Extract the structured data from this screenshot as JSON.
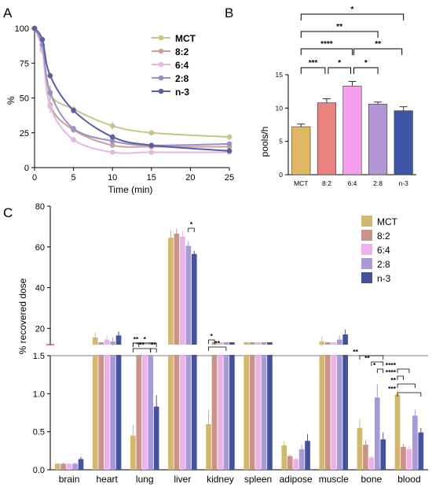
{
  "chart_data": [
    {
      "panel": "A",
      "type": "line",
      "xlabel": "Time (min)",
      "ylabel": "%",
      "xlim": [
        0,
        25
      ],
      "ylim": [
        0,
        100
      ],
      "xticks": [
        0,
        5,
        10,
        15,
        20,
        25
      ],
      "yticks": [
        0,
        25,
        50,
        75,
        100
      ],
      "x": [
        0,
        1,
        2,
        5,
        10,
        15,
        25
      ],
      "legend_position": "top-right",
      "series": [
        {
          "name": "MCT",
          "color": "#c9c48a",
          "values": [
            100,
            88,
            53,
            42,
            30,
            25,
            22
          ],
          "errors": [
            0,
            2,
            4,
            2,
            3,
            2,
            2
          ]
        },
        {
          "name": "8:2",
          "color": "#c8a0a0",
          "values": [
            100,
            85,
            45,
            27,
            16,
            15,
            15
          ],
          "errors": [
            0,
            2,
            6,
            2,
            2,
            1,
            1
          ]
        },
        {
          "name": "6:4",
          "color": "#e6b8e0",
          "values": [
            100,
            84,
            44,
            20,
            11,
            11,
            11
          ],
          "errors": [
            0,
            2,
            5,
            2,
            1,
            1,
            1
          ]
        },
        {
          "name": "2:8",
          "color": "#9a8fc4",
          "values": [
            100,
            88,
            54,
            28,
            19,
            16,
            17
          ],
          "errors": [
            0,
            2,
            5,
            2,
            2,
            1,
            1
          ]
        },
        {
          "name": "n-3",
          "color": "#5b5f9e",
          "values": [
            100,
            92,
            66,
            41,
            22,
            16,
            12
          ],
          "errors": [
            0,
            1,
            2,
            2,
            2,
            1,
            1
          ]
        }
      ]
    },
    {
      "panel": "B",
      "type": "bar",
      "ylabel": "pools/h",
      "ylim": [
        0,
        15
      ],
      "yticks": [
        0,
        5,
        10,
        15
      ],
      "categories": [
        "MCT",
        "8:2",
        "6:4",
        "2:8",
        "n-3"
      ],
      "values": [
        7.2,
        10.8,
        13.3,
        10.6,
        9.6
      ],
      "errors": [
        0.4,
        0.6,
        0.7,
        0.3,
        0.6
      ],
      "colors": [
        "#e2b866",
        "#e8837f",
        "#f69ff0",
        "#b495d6",
        "#3f56a6"
      ],
      "significance": [
        {
          "from": "MCT",
          "to": "n-3",
          "label": "*"
        },
        {
          "from": "MCT",
          "to": "2:8",
          "label": "**"
        },
        {
          "from": "MCT",
          "to": "6:4",
          "label": "****"
        },
        {
          "from": "6:4",
          "to": "n-3",
          "label": "**"
        },
        {
          "from": "MCT",
          "to": "8:2",
          "label": "***"
        },
        {
          "from": "8:2",
          "to": "6:4",
          "label": "*"
        },
        {
          "from": "6:4",
          "to": "2:8",
          "label": "*"
        }
      ]
    },
    {
      "panel": "C",
      "type": "bar",
      "ylabel": "% recovered dose",
      "categories": [
        "brain",
        "heart",
        "lung",
        "liver",
        "kidney",
        "spleen",
        "adipose",
        "muscle",
        "bone",
        "blood"
      ],
      "axis_break": {
        "lower_ylim": [
          0,
          1.5
        ],
        "lower_yticks": [
          0.0,
          0.5,
          1.0,
          1.5
        ],
        "upper_ylim": [
          0,
          80
        ],
        "upper_yticks": [
          20,
          40,
          60,
          80
        ]
      },
      "legend_position": "top-right",
      "series": [
        {
          "name": "MCT",
          "color": "#d2b86e",
          "values": [
            0.08,
            15.5,
            0.45,
            64.5,
            0.6,
            5.5,
            0.32,
            13.5,
            0.55,
            0.99
          ],
          "errors": [
            0.01,
            2.5,
            0.14,
            3.5,
            0.18,
            0.8,
            0.06,
            2.5,
            0.12,
            0.06
          ]
        },
        {
          "name": "8:2",
          "color": "#c9938a",
          "values": [
            0.08,
            10.5,
            2.0,
            66.5,
            2.0,
            6.5,
            0.18,
            10.5,
            0.33,
            0.3
          ],
          "errors": [
            0.01,
            1.5,
            0.3,
            2.5,
            0.3,
            0.8,
            0.02,
            1.8,
            0.06,
            0.04
          ]
        },
        {
          "name": "6:4",
          "color": "#eeb0ea",
          "values": [
            0.08,
            14.5,
            2.1,
            65.0,
            2.2,
            6.0,
            0.14,
            10.0,
            0.16,
            0.27
          ],
          "errors": [
            0.01,
            2.0,
            0.3,
            3.0,
            0.3,
            0.6,
            0.02,
            1.5,
            0.03,
            0.04
          ]
        },
        {
          "name": "2:8",
          "color": "#a899d8",
          "values": [
            0.08,
            13.5,
            2.5,
            60.5,
            3.0,
            5.5,
            0.27,
            14.5,
            0.95,
            0.71
          ],
          "errors": [
            0.01,
            2.0,
            0.3,
            2.5,
            0.3,
            0.8,
            0.06,
            2.0,
            0.18,
            0.08
          ]
        },
        {
          "name": "n-3",
          "color": "#44519c",
          "values": [
            0.14,
            16.5,
            0.83,
            56.5,
            2.0,
            6.0,
            0.38,
            17.0,
            0.4,
            0.49
          ],
          "errors": [
            0.03,
            2.0,
            0.15,
            1.5,
            0.3,
            1.0,
            0.09,
            2.5,
            0.09,
            0.06
          ]
        }
      ],
      "significance": [
        {
          "group": "lung",
          "pairs": [
            [
              "MCT",
              "8:2"
            ],
            [
              "MCT",
              "2:8"
            ],
            [
              "MCT",
              "n-3"
            ],
            [
              "2:8",
              "n-3"
            ]
          ],
          "labels": [
            "**",
            "**",
            "*",
            "**"
          ]
        },
        {
          "group": "liver",
          "pairs": [
            [
              "2:8",
              "n-3"
            ]
          ],
          "labels": [
            "*"
          ]
        },
        {
          "group": "kidney",
          "pairs": [
            [
              "MCT",
              "8:2"
            ],
            [
              "MCT",
              "2:8"
            ]
          ],
          "labels": [
            "*",
            "**"
          ]
        },
        {
          "group": "bone",
          "pairs": [
            [
              "MCT",
              "n-3"
            ],
            [
              "6:4",
              "n-3"
            ],
            [
              "2:8",
              "n-3"
            ]
          ],
          "labels": [
            "**",
            "**",
            "*"
          ]
        },
        {
          "group": "blood",
          "pairs": [
            [
              "MCT",
              "8:2"
            ],
            [
              "MCT",
              "6:4"
            ],
            [
              "MCT",
              "2:8"
            ],
            [
              "MCT",
              "n-3"
            ]
          ],
          "labels": [
            "****",
            "****",
            "**",
            "***"
          ]
        }
      ]
    }
  ]
}
